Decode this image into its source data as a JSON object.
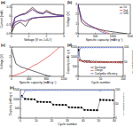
{
  "chart_data": [
    {
      "type": "line",
      "title": "(a)",
      "x_label": "Voltage (V vs. Li/Li⁺)",
      "y_label": "Current (mA)",
      "x": [
        3.0,
        2.5,
        2.0,
        1.5,
        1.2,
        1.0,
        0.8,
        0.5,
        0.2,
        0.01,
        0.2,
        0.5,
        0.8,
        1.0,
        1.2,
        1.5,
        1.8,
        2.0,
        2.3,
        2.6,
        3.0
      ],
      "xlim": [
        0,
        3
      ],
      "xticks": [
        0,
        1,
        2,
        3
      ],
      "ylim": [
        -0.6,
        0.4
      ],
      "yticks": [
        -0.6,
        -0.3,
        0,
        0.3
      ],
      "series": [
        {
          "color": "#000000",
          "values": [
            0,
            -0.02,
            -0.03,
            -0.05,
            -0.08,
            -0.15,
            -0.35,
            -0.2,
            -0.3,
            -0.55,
            -0.05,
            0.05,
            0.1,
            0.2,
            0.3,
            0.15,
            0.1,
            0.2,
            0.1,
            0.05,
            0.03
          ]
        },
        {
          "color": "#e0201b",
          "values": [
            0,
            -0.01,
            -0.02,
            -0.04,
            -0.07,
            -0.12,
            -0.18,
            -0.15,
            -0.22,
            -0.42,
            -0.04,
            0.04,
            0.08,
            0.16,
            0.24,
            0.12,
            0.08,
            0.16,
            0.08,
            0.04,
            0.02
          ]
        },
        {
          "color": "#1f3fd0",
          "values": [
            0,
            -0.01,
            -0.02,
            -0.04,
            -0.06,
            -0.1,
            -0.16,
            -0.14,
            -0.2,
            -0.38,
            -0.04,
            0.03,
            0.07,
            0.14,
            0.22,
            0.11,
            0.07,
            0.14,
            0.07,
            0.03,
            0.02
          ]
        }
      ]
    },
    {
      "type": "line",
      "title": "(b)",
      "x_label": "Specific capacity (mAh g⁻¹)",
      "y_label": "Voltage (V)",
      "x": [
        0,
        100,
        200,
        300,
        400,
        500,
        600,
        700,
        800,
        900,
        1000,
        1100,
        1200,
        1300,
        1400
      ],
      "xlim": [
        0,
        1500
      ],
      "xticks": [
        0,
        500,
        1000,
        1500
      ],
      "ylim": [
        0,
        3
      ],
      "yticks": [
        0,
        1,
        2,
        3
      ],
      "legend": "upper right",
      "series": [
        {
          "name": "1st",
          "color": "#000000",
          "values": [
            3.0,
            1.2,
            0.9,
            0.75,
            0.65,
            0.55,
            0.45,
            0.38,
            0.3,
            0.25,
            0.2,
            0.15,
            0.1,
            0.05,
            0.01
          ]
        },
        {
          "name": "2nd",
          "color": "#e0201b",
          "values": [
            3.0,
            1.5,
            1.1,
            0.9,
            0.75,
            0.6,
            0.45,
            0.3,
            0.15,
            0.01,
            null,
            null,
            null,
            null,
            null
          ]
        },
        {
          "name": "50th",
          "color": "#1f3fd0",
          "values": [
            3.0,
            1.6,
            1.2,
            0.95,
            0.75,
            0.55,
            0.35,
            0.15,
            0.01,
            null,
            null,
            null,
            null,
            null,
            null
          ]
        }
      ]
    },
    {
      "type": "line",
      "title": "(c)",
      "x_label": "Specific capacity (mAh g⁻¹)",
      "y_label": "Voltage (V)",
      "x": [
        0,
        100,
        200,
        300,
        400,
        500,
        600,
        700,
        800,
        900,
        1000,
        1100,
        1200
      ],
      "xlim": [
        0,
        1200
      ],
      "xticks": [
        0,
        400,
        800,
        1200
      ],
      "ylim": [
        0,
        3
      ],
      "yticks": [
        0,
        1,
        2,
        3
      ],
      "series": [
        {
          "color": "#000000",
          "values": [
            2.8,
            1.3,
            1.0,
            0.85,
            0.7,
            0.55,
            0.4,
            0.25,
            0.1,
            0.01,
            null,
            null,
            null
          ]
        },
        {
          "color": "#e0201b",
          "values": [
            0.01,
            0.15,
            0.3,
            0.5,
            0.8,
            1.1,
            1.3,
            1.6,
            1.9,
            2.2,
            2.6,
            3.0,
            null
          ]
        }
      ]
    },
    {
      "type": "line",
      "title": "(d)",
      "x_label": "Cycle number",
      "y_label": "Capacity (mAh g⁻¹)",
      "y2_label": "Coulombic efficiency (%)",
      "x": [
        1,
        5,
        10,
        15,
        20,
        25,
        30,
        35,
        40,
        45,
        50,
        55,
        60,
        65,
        70,
        75,
        80,
        85,
        90,
        95,
        100
      ],
      "xlim": [
        0,
        100
      ],
      "xticks": [
        0,
        50,
        100
      ],
      "ylim": [
        0,
        1500
      ],
      "yticks": [
        0,
        500,
        1000,
        1500
      ],
      "y2lim": [
        0,
        100
      ],
      "y2ticks": [
        0,
        50,
        100
      ],
      "legend": "lower right",
      "series": [
        {
          "name": "Discharge",
          "color": "#000000",
          "marker": "square",
          "values": [
            1350,
            820,
            780,
            760,
            750,
            745,
            740,
            740,
            738,
            735,
            735,
            732,
            730,
            730,
            728,
            728,
            725,
            725,
            722,
            720,
            720
          ]
        },
        {
          "name": "Charge",
          "color": "#e0201b",
          "marker": "circle",
          "values": [
            900,
            805,
            770,
            750,
            742,
            738,
            734,
            734,
            732,
            730,
            730,
            727,
            725,
            725,
            723,
            723,
            720,
            720,
            718,
            716,
            716
          ]
        },
        {
          "name": "Coulombic efficiency",
          "color": "#1f3fd0",
          "marker": "circle",
          "axis": "y2",
          "values": [
            67,
            98,
            98.5,
            98.6,
            98.8,
            99,
            99,
            99,
            99.1,
            99.2,
            99.2,
            99.2,
            99.3,
            99.3,
            99.3,
            99.4,
            99.4,
            99.4,
            99.5,
            99.5,
            99.5
          ]
        }
      ]
    },
    {
      "type": "line",
      "title": "(e)",
      "x_label": "Cycle number",
      "y_label": "Capacity (mAh g⁻¹)",
      "y2_label": "Coulombic efficiency (%)",
      "x": [
        1,
        3,
        5,
        7,
        9,
        11,
        13,
        15,
        17,
        19,
        21,
        23,
        25,
        27,
        29,
        31,
        33,
        35,
        37,
        39,
        41,
        43,
        45,
        47,
        49,
        51,
        53,
        55,
        57,
        59
      ],
      "xlim": [
        0,
        60
      ],
      "xticks": [
        0,
        10,
        20,
        30,
        40,
        50,
        60
      ],
      "ylim": [
        0,
        1500
      ],
      "yticks": [
        0,
        500,
        1000,
        1500
      ],
      "y2lim": [
        0,
        100
      ],
      "y2ticks": [
        0,
        50,
        100
      ],
      "series": [
        {
          "color": "#000000",
          "marker": "square",
          "values": [
            1150,
            1010,
            1000,
            995,
            990,
            860,
            855,
            850,
            848,
            845,
            710,
            705,
            700,
            698,
            695,
            570,
            565,
            560,
            558,
            555,
            430,
            425,
            420,
            418,
            415,
            960,
            955,
            950,
            948,
            945
          ]
        },
        {
          "color": "#1f3fd0",
          "marker": "circle",
          "axis": "y2",
          "values": [
            75,
            97,
            98,
            98,
            98,
            99,
            99,
            99,
            99,
            99,
            99,
            99,
            99,
            99,
            99,
            99,
            99,
            99,
            99,
            99,
            99,
            99,
            99,
            99,
            99,
            97,
            99,
            99,
            99,
            99
          ]
        }
      ]
    }
  ]
}
